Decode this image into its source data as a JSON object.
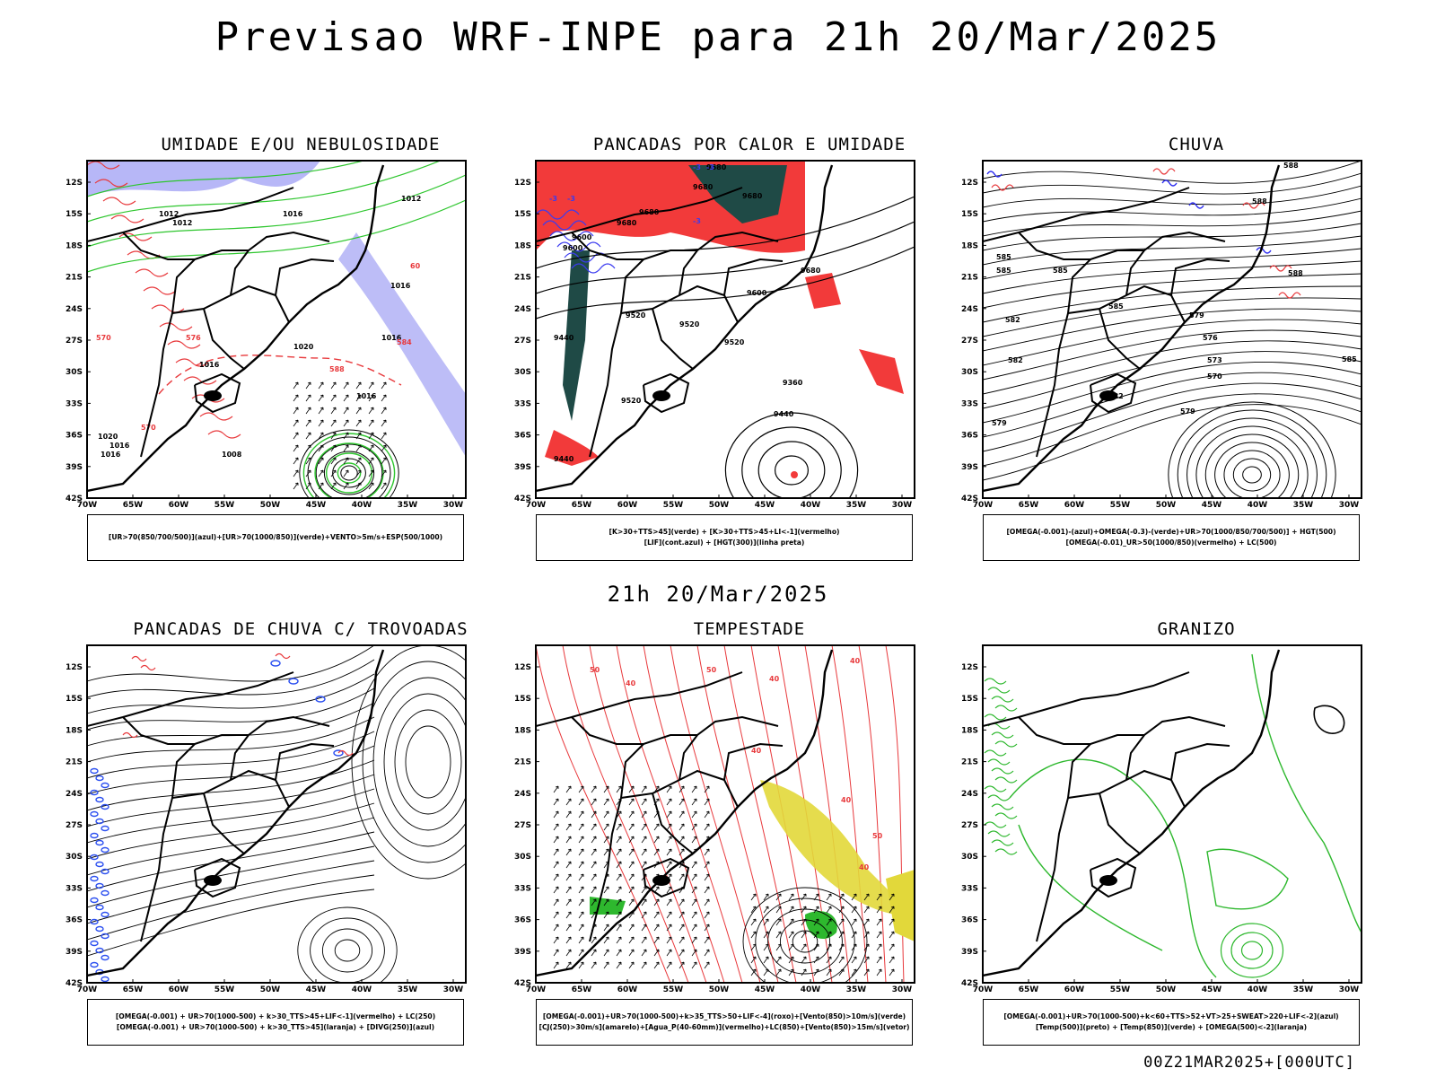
{
  "title": "Previsao WRF-INPE  para 21h 20/Mar/2025",
  "subtitle": "21h 20/Mar/2025",
  "footer": "00Z21MAR2025+[000UTC]",
  "axes": {
    "lat_labels": [
      "12S",
      "15S",
      "18S",
      "21S",
      "24S",
      "27S",
      "30S",
      "33S",
      "36S",
      "39S",
      "42S"
    ],
    "lon_labels": [
      "70W",
      "65W",
      "60W",
      "55W",
      "50W",
      "45W",
      "40W",
      "35W",
      "30W"
    ]
  },
  "panels": [
    {
      "title": "UMIDADE E/OU NEBULOSIDADE",
      "legend": [
        "[UR>70(850/700/500)](azul)+[UR>70(1000/850)](verde)+VENTO>5m/s+ESP(500/1000)"
      ],
      "labels": [
        "1012",
        "1012",
        "1016",
        "1016",
        "1020",
        "1016",
        "1016",
        "1020",
        "1016",
        "1016",
        "1008",
        "1012",
        "1016",
        "570",
        "576",
        "584",
        "588",
        "570",
        "60"
      ],
      "colors": {
        "wet_high": "#7b7bf0",
        "wet_low": "#2ec62e",
        "thickness": "#e8393c"
      }
    },
    {
      "title": "PANCADAS POR CALOR E UMIDADE",
      "legend": [
        "[K>30+TTS>45](verde) + [K>30+TTS>45+LI<-1](vermelho)",
        "[LIF](cont.azul) + [HGT(300)](linha preta)"
      ],
      "labels": [
        "9680",
        "9680",
        "9680",
        "9680",
        "9680",
        "9600",
        "9600",
        "9680",
        "9600",
        "9520",
        "9520",
        "9520",
        "9440",
        "9360",
        "9440",
        "9520",
        "9440",
        "-3",
        "-3",
        "-3",
        "-3",
        "-3"
      ],
      "colors": {
        "green_area": "#1f4a46",
        "red_area": "#f23a3a",
        "lif": "#3b3bf0"
      }
    },
    {
      "title": "CHUVA",
      "legend": [
        "[OMEGA(-0.001)-(azul)+OMEGA(-0.3)-(verde)+UR>70(1000/850/700/500)] + HGT(500)",
        "[OMEGA(-0.01)_UR>50(1000/850)(vermelho) + LC(500)"
      ],
      "labels": [
        "588",
        "588",
        "585",
        "585",
        "588",
        "585",
        "585",
        "582",
        "582",
        "579",
        "576",
        "573",
        "570",
        "582",
        "579",
        "579",
        "585"
      ]
    },
    {
      "title": "PANCADAS DE CHUVA C/ TROVOADAS",
      "legend": [
        "[OMEGA(-0.001) + UR>70(1000-500) + k>30_TTS>45+LIF<-1](vermelho) + LC(250)",
        "[OMEGA(-0.001) + UR>70(1000-500) + k>30_TTS>45](laranja) + [DIVG(250)](azul)"
      ],
      "labels": []
    },
    {
      "title": "TEMPESTADE",
      "legend": [
        "[OMEGA(-0.001)+UR>70(1000-500)+k>35_TTS>50+LIF<-4](roxo)+[Vento(850)>10m/s](verde)",
        "[CJ(250)>30m/s](amarelo)+[Agua_P(40-60mm)](vermelho)+LC(850)+[Vento(850)>15m/s](vetor)"
      ],
      "labels": [
        "50",
        "40",
        "50",
        "40",
        "40",
        "40",
        "50",
        "40",
        "40"
      ]
    },
    {
      "title": "GRANIZO",
      "legend": [
        "[OMEGA(-0.001)+UR>70(1000-500)+k<60+TTS>52+VT>25+SWEAT>220+LIF<-2](azul)",
        "[Temp(500)](preto) + [Temp(850)](verde) + [OMEGA(500)<-2](laranja)"
      ],
      "labels": []
    }
  ]
}
